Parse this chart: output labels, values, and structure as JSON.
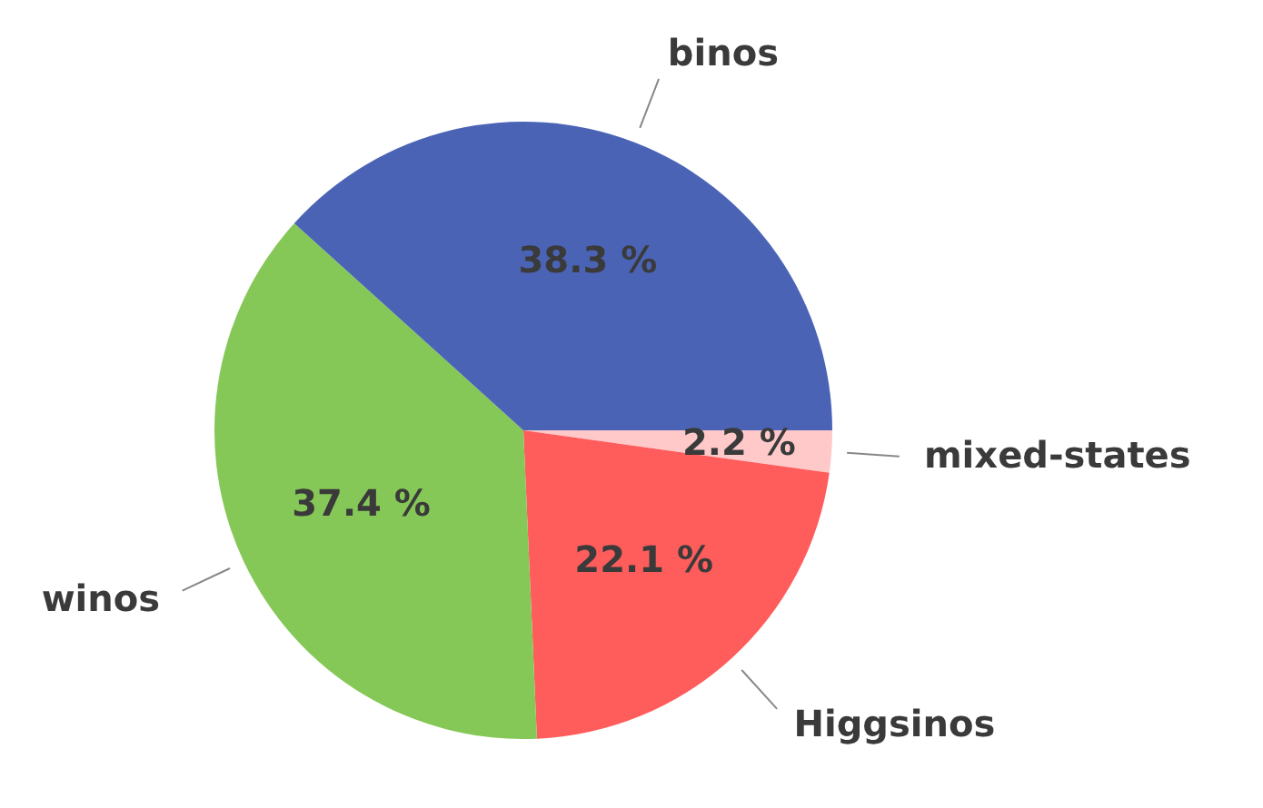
{
  "chart_data": {
    "type": "pie",
    "categories": [
      "mixed-states",
      "Higgsinos",
      "winos",
      "binos"
    ],
    "values": [
      2.2,
      22.1,
      37.4,
      38.3
    ],
    "colors": [
      "#ffc9c9",
      "#ff5c5c",
      "#85c857",
      "#4a63b5"
    ],
    "value_labels": [
      "2.2 %",
      "22.1 %",
      "37.4 %",
      "38.3 %"
    ],
    "legend": false
  }
}
